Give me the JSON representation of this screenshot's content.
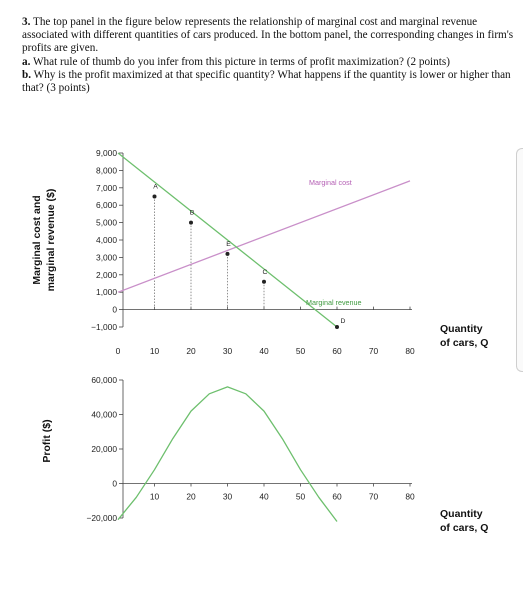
{
  "question": {
    "number": "3.",
    "intro": "The top panel in the figure below represents the relationship of marginal cost and marginal revenue associated with different quantities of cars produced. In the bottom panel, the corresponding changes in firm's profits are given.",
    "part_a_label": "a.",
    "part_a": "What rule of thumb do you infer from this picture in terms of profit maximization? (2 points)",
    "part_b_label": "b.",
    "part_b": "Why is the profit maximized at that specific quantity? What happens if the quantity is lower or higher than that? (3 points)"
  },
  "chart_data": [
    {
      "type": "line",
      "ylabel_line1": "Marginal cost and",
      "ylabel_line2": "marginal revenue ($)",
      "xlabel_line1": "Quantity",
      "xlabel_line2": "of cars, Q",
      "xlim": [
        0,
        80
      ],
      "ylim": [
        -1000,
        9000
      ],
      "x_ticks": [
        "0",
        "10",
        "20",
        "30",
        "40",
        "50",
        "60",
        "70",
        "80"
      ],
      "y_ticks": [
        "9,000",
        "8,000",
        "7,000",
        "6,000",
        "5,000",
        "4,000",
        "3,000",
        "2,000",
        "1,000",
        "0",
        "−1,000"
      ],
      "y_tick_values": [
        9000,
        8000,
        7000,
        6000,
        5000,
        4000,
        3000,
        2000,
        1000,
        0,
        -1000
      ],
      "series": [
        {
          "name": "Marginal cost",
          "color": "#c98fc9",
          "x": [
            0,
            80
          ],
          "y": [
            1000,
            7400
          ]
        },
        {
          "name": "Marginal revenue",
          "color": "#6dbf6d",
          "x": [
            0,
            60
          ],
          "y": [
            9000,
            -1000
          ]
        }
      ],
      "points": [
        {
          "label": "A",
          "x": 10,
          "y": 6500
        },
        {
          "label": "B",
          "x": 20,
          "y": 5000
        },
        {
          "label": "E",
          "x": 30,
          "y": 3200
        },
        {
          "label": "C",
          "x": 40,
          "y": 1600
        },
        {
          "label": "D",
          "x": 60,
          "y": -1000
        }
      ]
    },
    {
      "type": "line",
      "ylabel": "Profit ($)",
      "xlabel_line1": "Quantity",
      "xlabel_line2": "of cars, Q",
      "xlim": [
        0,
        80
      ],
      "ylim": [
        -20000,
        60000
      ],
      "x_ticks": [
        "10",
        "20",
        "30",
        "40",
        "50",
        "60",
        "70",
        "80"
      ],
      "y_ticks": [
        "60,000",
        "40,000",
        "20,000",
        "0",
        "−20,000"
      ],
      "y_tick_values": [
        60000,
        40000,
        20000,
        0,
        -20000
      ],
      "series": [
        {
          "name": "Profit",
          "color": "#6dbf6d",
          "x": [
            0,
            5,
            10,
            15,
            20,
            25,
            30,
            35,
            40,
            45,
            50,
            55,
            60
          ],
          "y": [
            -21000,
            -8000,
            8000,
            26000,
            42000,
            52000,
            56000,
            52000,
            42000,
            26000,
            8000,
            -8000,
            -22000
          ]
        }
      ]
    }
  ]
}
